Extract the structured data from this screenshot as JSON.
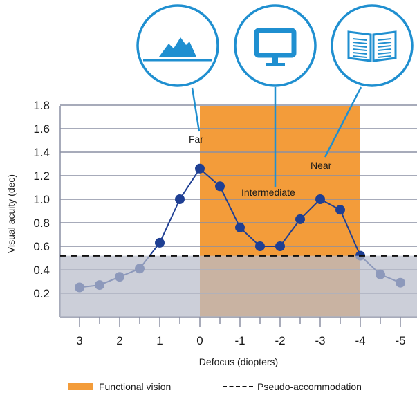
{
  "chart_data": {
    "type": "line",
    "xlabel": "Defocus (diopters)",
    "ylabel": "Visual acuity (dec)",
    "x_ticks": [
      "3",
      "2",
      "1",
      "0",
      "-1",
      "-2",
      "-3",
      "-4",
      "-5"
    ],
    "y_ticks": [
      "0.2",
      "0.4",
      "0.6",
      "0.8",
      "1.0",
      "1.2",
      "1.4",
      "1.6",
      "1.8"
    ],
    "xlim": [
      3.5,
      -5.5
    ],
    "ylim": [
      0.0,
      1.8
    ],
    "series": [
      {
        "x": [
          3,
          2.5,
          2,
          1.5,
          1,
          0.5,
          0,
          -0.5,
          -1,
          -1.5,
          -2,
          -2.5,
          -3,
          -3.5,
          -4,
          -4.5,
          -5
        ],
        "values": [
          0.25,
          0.27,
          0.34,
          0.41,
          0.63,
          1.0,
          1.26,
          1.11,
          0.76,
          0.6,
          0.6,
          0.83,
          1.0,
          0.91,
          0.52,
          0.36,
          0.29
        ],
        "color": "#1f3f93"
      }
    ],
    "functional_vision_range": [
      0,
      -4
    ],
    "pseudo_accommodation_level": 0.52,
    "annotations": [
      {
        "text": "Far",
        "icon": "mountain-icon"
      },
      {
        "text": "Intermediate",
        "icon": "monitor-icon"
      },
      {
        "text": "Near",
        "icon": "book-icon"
      }
    ],
    "legend": [
      {
        "label": "Functional vision",
        "color": "#f39c3a"
      },
      {
        "label": "Pseudo-accommodation",
        "style": "dashed"
      }
    ],
    "colors": {
      "functional": "#f39c3a",
      "shade": "#b9bdcb",
      "line": "#1f3f93",
      "icon": "#1f8fd0",
      "grid": "#8a8fa3"
    },
    "grid": true
  }
}
